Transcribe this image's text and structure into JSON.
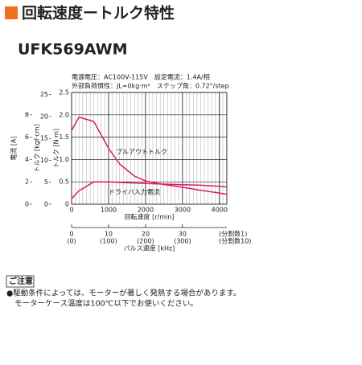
{
  "header": {
    "title": "回転速度ートルク特性"
  },
  "model": "UFK569AWM",
  "conditions": [
    "電源電圧：AC100V-115V　設定電流：1.4A/相",
    "外部負荷慣性：JL=0kg·m²　ステップ角：0.72°/step"
  ],
  "note": {
    "heading": "ご注意",
    "lines": [
      "●駆動条件によっては、モーターが著しく発熱する場合があります。",
      "モーターケース温度は100℃以下でお使いください。"
    ]
  },
  "chart_data": {
    "type": "line",
    "x_label": "回転速度 [r/min]",
    "y_label": "トルク [N·m]",
    "y2_label": "トルク [kgf·cm]",
    "y3_label": "電流 [A]",
    "x": [
      0,
      200,
      600,
      1000,
      1300,
      1700,
      2000,
      2500,
      3000,
      3500,
      4000,
      4200
    ],
    "xlim": [
      0,
      4200
    ],
    "xticks": [
      0,
      1000,
      2000,
      3000,
      4000
    ],
    "ylim": [
      0,
      2.5
    ],
    "yticks": [
      0,
      0.5,
      {
        "value": 1,
        "label": "1.0"
      },
      1.5,
      {
        "value": 2,
        "label": "2.0"
      },
      2.5
    ],
    "y2lim": [
      0,
      25.5
    ],
    "y2ticks": [
      0,
      5,
      10,
      15,
      20,
      25
    ],
    "y3lim": [
      0,
      10
    ],
    "y3ticks": [
      0,
      2,
      4,
      6,
      8
    ],
    "grid": true,
    "pulse_axis": {
      "label": "パルス速度 [kHz]",
      "xlim": [
        0,
        42
      ],
      "ticks": [
        0,
        10,
        20,
        30
      ],
      "ticks_div10": [
        {
          "value": 0,
          "label": "(0)"
        },
        {
          "value": 10,
          "label": "(100)"
        },
        {
          "value": 20,
          "label": "(200)"
        },
        {
          "value": 30,
          "label": "(300)"
        }
      ],
      "division_labels": [
        "(分割数1)",
        "(分割数10)"
      ]
    },
    "series": [
      {
        "name": "プルアウトトルク",
        "color": "#e0186c",
        "values": [
          1.65,
          1.95,
          1.85,
          1.25,
          0.9,
          0.63,
          0.52,
          0.44,
          0.38,
          0.31,
          0.25,
          0.22
        ]
      },
      {
        "name": "ドライバ入力電流",
        "color": "#e0186c",
        "axis": "y3",
        "values": [
          0.5,
          1.2,
          2.0,
          2.0,
          1.95,
          1.9,
          1.85,
          1.8,
          1.75,
          1.7,
          1.6,
          1.55
        ]
      }
    ]
  }
}
